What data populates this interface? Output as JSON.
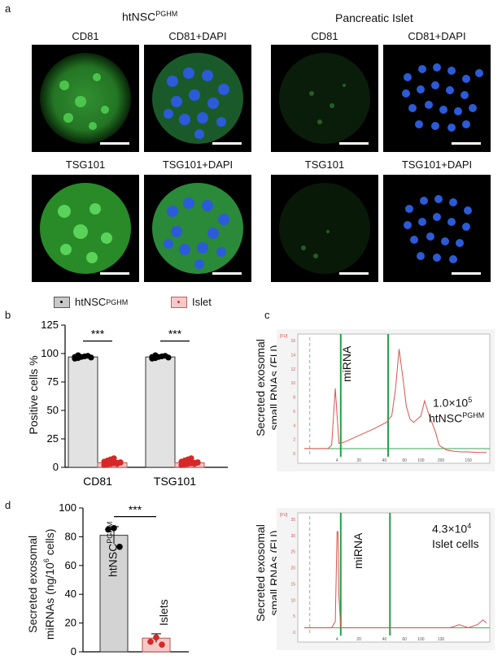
{
  "panel_a": {
    "letter": "a",
    "group_left": {
      "base": "htNSC",
      "sup": "PGHM"
    },
    "group_right": "Pancreatic Islet",
    "labels": [
      "CD81",
      "CD81+DAPI",
      "CD81",
      "CD81+DAPI",
      "TSG101",
      "TSG101+DAPI",
      "TSG101",
      "TSG101+DAPI"
    ]
  },
  "panel_b": {
    "letter": "b",
    "ylabel": "Positive cells %",
    "legend": [
      {
        "base": "htNSC",
        "sup": "PGHM",
        "color": "#c8c8c8"
      },
      {
        "base": "Islet",
        "sup": "",
        "color": "#f6c9c9"
      }
    ],
    "sig": [
      "***",
      "***"
    ]
  },
  "panel_c": {
    "letter": "c",
    "ylabel": [
      "Secreted exosomal",
      "small RNAs (FU)"
    ],
    "top": {
      "count_base": "1.0",
      "count_exp": "5",
      "sample": {
        "base": "htNSC",
        "sup": "PGHM"
      },
      "marker": "miRNA"
    },
    "bottom": {
      "count_base": "4.3",
      "count_exp": "4",
      "sample_text": "Islet cells",
      "marker": "miRNA"
    },
    "top_axis_tag": "[FU]",
    "bottom_axis_tag": "[FU]",
    "top_yticks": [
      "16",
      "14",
      "12",
      "10",
      "8",
      "6",
      "4",
      "2",
      "0"
    ],
    "top_xticks": [
      "4",
      "20",
      "40",
      "60",
      "100",
      "200",
      "150"
    ],
    "bottom_yticks": [
      "35",
      "30",
      "25",
      "20",
      "15",
      "10",
      "5",
      "0"
    ],
    "bottom_xticks": [
      "4",
      "20",
      "40",
      "60",
      "100",
      "130"
    ]
  },
  "panel_d": {
    "letter": "d",
    "ylabel": [
      "Secreted exosomal",
      "miRNAs (ng/10^6 cells)"
    ],
    "sig": "***"
  },
  "chart_data": [
    {
      "type": "bar",
      "id": "panel_b",
      "categories": [
        "CD81",
        "TSG101"
      ],
      "series": [
        {
          "name": "htNSC PGHM",
          "values": [
            97,
            97
          ],
          "points": [
            [
              95.5,
              96,
              97,
              97.5,
              98,
              96.5,
              97,
              98.5
            ],
            [
              95.5,
              96,
              97,
              97.5,
              98,
              96.5,
              97,
              98.5
            ]
          ]
        },
        {
          "name": "Islet",
          "values": [
            4,
            4
          ],
          "points": [
            [
              2,
              2.5,
              3,
              3.5,
              4,
              4.5,
              5,
              6,
              7,
              8,
              3,
              4
            ],
            [
              2,
              2.5,
              3,
              3.5,
              4,
              4.5,
              5,
              6,
              7,
              8,
              3,
              4
            ]
          ]
        }
      ],
      "ylabel": "Positive cells %",
      "ylim": [
        0,
        125
      ],
      "yticks": [
        0,
        25,
        50,
        75,
        100,
        125
      ]
    },
    {
      "type": "bar",
      "id": "panel_d",
      "categories": [
        "htNSC PGHM",
        "Islets"
      ],
      "values": [
        81,
        9.5
      ],
      "errors": [
        6,
        3
      ],
      "points": [
        [
          85,
          86,
          73
        ],
        [
          7,
          10,
          5
        ]
      ],
      "bar_colors": [
        "#d3d3d3",
        "#f6c9c9"
      ],
      "ylabel": "Secreted exosomal miRNAs (ng/10^6 cells)",
      "ylim": [
        0,
        100
      ],
      "yticks": [
        0,
        20,
        40,
        60,
        80,
        100
      ]
    },
    {
      "type": "line",
      "id": "panel_c_top",
      "x": [
        0,
        0.05,
        0.1,
        0.13,
        0.15,
        0.17,
        0.19,
        0.22,
        0.3,
        0.38,
        0.45,
        0.48,
        0.5,
        0.52,
        0.54,
        0.56,
        0.58,
        0.6,
        0.64,
        0.66,
        0.68,
        0.7,
        0.72,
        0.74,
        0.78,
        0.82,
        0.86,
        0.9,
        0.95,
        1.0
      ],
      "y": [
        0,
        0,
        0,
        0,
        0.5,
        9.2,
        0.8,
        1.0,
        2.0,
        3.0,
        4.0,
        5.0,
        9.0,
        15.2,
        11.0,
        6.5,
        4.5,
        4.0,
        5.0,
        7.3,
        5.5,
        4.0,
        2.5,
        0.5,
        -0.2,
        -0.4,
        -0.5,
        -0.5,
        -0.6,
        -0.6
      ],
      "ylim": [
        -1,
        17
      ],
      "color": "#d9534f"
    },
    {
      "type": "line",
      "id": "panel_c_bottom",
      "x": [
        0,
        0.1,
        0.15,
        0.17,
        0.18,
        0.185,
        0.19,
        0.2,
        0.22,
        0.4,
        0.6,
        0.8,
        0.85,
        0.9,
        0.95,
        0.98,
        1.0
      ],
      "y": [
        0,
        0,
        0,
        2,
        31,
        31,
        10,
        0,
        0,
        0,
        0,
        0,
        1,
        0,
        1,
        2.5,
        1.5
      ],
      "ylim": [
        -2,
        36
      ],
      "color": "#d9534f"
    }
  ]
}
